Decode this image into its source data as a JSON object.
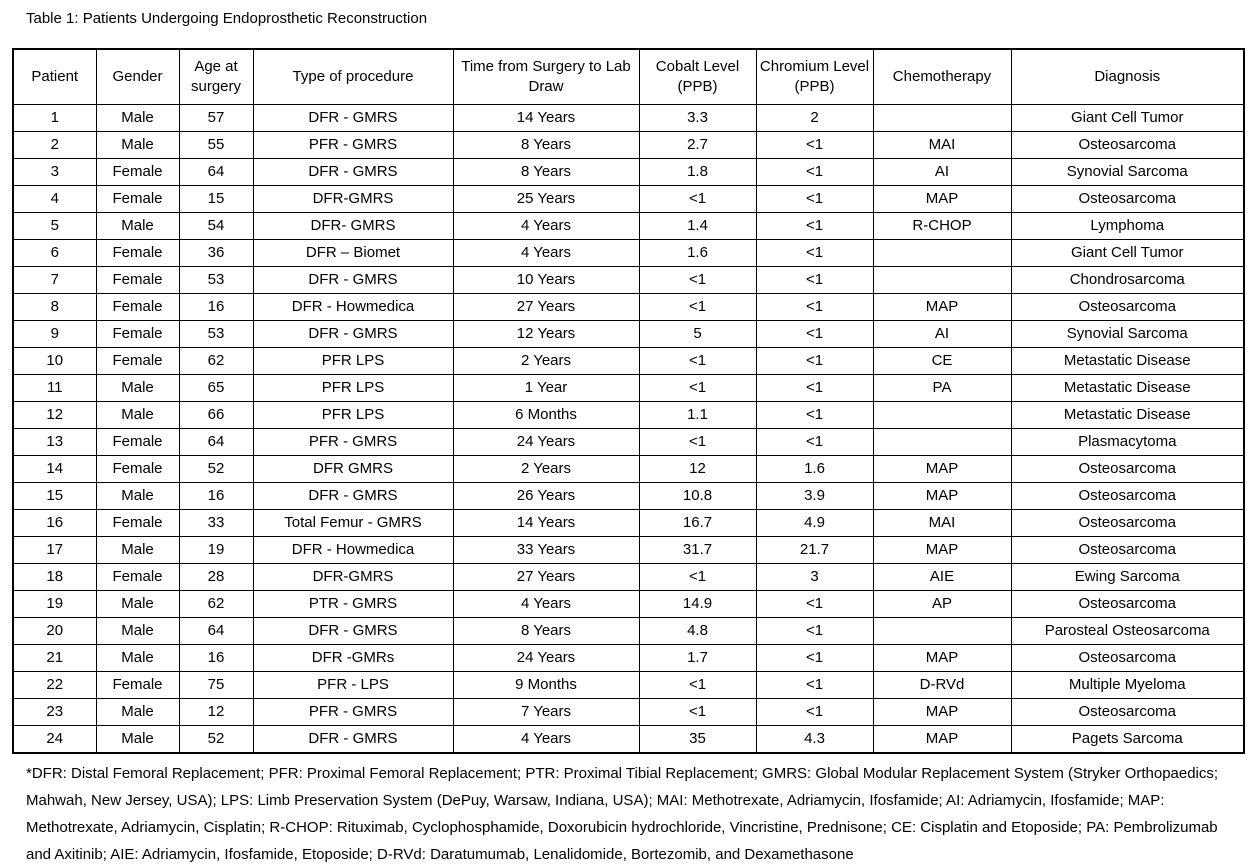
{
  "document": {
    "title": "Table 1: Patients Undergoing Endoprosthetic Reconstruction",
    "footnote": "*DFR: Distal Femoral Replacement; PFR: Proximal Femoral Replacement; PTR: Proximal Tibial Replacement; GMRS: Global Modular Replacement System (Stryker Orthopaedics; Mahwah, New Jersey, USA); LPS: Limb Preservation System (DePuy, Warsaw, Indiana, USA); MAI: Methotrexate, Adriamycin, Ifosfamide; AI: Adriamycin, Ifosfamide; MAP: Methotrexate, Adriamycin, Cisplatin; R-CHOP: Rituximab, Cyclophosphamide, Doxorubicin hydrochloride, Vincristine, Prednisone; CE: Cisplatin and Etoposide; PA: Pembrolizumab and Axitinib; AIE: Adriamycin, Ifosfamide, Etoposide; D-RVd: Daratumumab, Lenalidomide, Bortezomib, and Dexamethasone"
  },
  "table": {
    "column_keys": [
      "patient",
      "gender",
      "age",
      "procedure",
      "time",
      "cobalt",
      "chromium",
      "chemo",
      "diagnosis"
    ],
    "columns": [
      "Patient",
      "Gender",
      "Age at surgery",
      "Type of procedure",
      "Time from Surgery to Lab Draw",
      "Cobalt Level (PPB)",
      "Chromium Level (PPB)",
      "Chemotherapy",
      "Diagnosis"
    ],
    "rows": [
      [
        "1",
        "Male",
        "57",
        "DFR - GMRS",
        "14 Years",
        "3.3",
        "2",
        "",
        "Giant Cell Tumor"
      ],
      [
        "2",
        "Male",
        "55",
        "PFR - GMRS",
        "8 Years",
        "2.7",
        "<1",
        "MAI",
        "Osteosarcoma"
      ],
      [
        "3",
        "Female",
        "64",
        "DFR - GMRS",
        "8 Years",
        "1.8",
        "<1",
        "AI",
        "Synovial Sarcoma"
      ],
      [
        "4",
        "Female",
        "15",
        "DFR-GMRS",
        "25 Years",
        "<1",
        "<1",
        "MAP",
        "Osteosarcoma"
      ],
      [
        "5",
        "Male",
        "54",
        "DFR- GMRS",
        "4 Years",
        "1.4",
        "<1",
        "R-CHOP",
        "Lymphoma"
      ],
      [
        "6",
        "Female",
        "36",
        "DFR – Biomet",
        "4 Years",
        "1.6",
        "<1",
        "",
        "Giant Cell Tumor"
      ],
      [
        "7",
        "Female",
        "53",
        "DFR - GMRS",
        "10 Years",
        "<1",
        "<1",
        "",
        "Chondrosarcoma"
      ],
      [
        "8",
        "Female",
        "16",
        "DFR - Howmedica",
        "27 Years",
        "<1",
        "<1",
        "MAP",
        "Osteosarcoma"
      ],
      [
        "9",
        "Female",
        "53",
        "DFR - GMRS",
        "12 Years",
        "5",
        "<1",
        "AI",
        "Synovial Sarcoma"
      ],
      [
        "10",
        "Female",
        "62",
        "PFR LPS",
        "2 Years",
        "<1",
        "<1",
        "CE",
        "Metastatic Disease"
      ],
      [
        "11",
        "Male",
        "65",
        "PFR LPS",
        "1 Year",
        "<1",
        "<1",
        "PA",
        "Metastatic Disease"
      ],
      [
        "12",
        "Male",
        "66",
        "PFR LPS",
        "6 Months",
        "1.1",
        "<1",
        "",
        "Metastatic Disease"
      ],
      [
        "13",
        "Female",
        "64",
        "PFR - GMRS",
        "24 Years",
        "<1",
        "<1",
        "",
        "Plasmacytoma"
      ],
      [
        "14",
        "Female",
        "52",
        "DFR GMRS",
        "2 Years",
        "12",
        "1.6",
        "MAP",
        "Osteosarcoma"
      ],
      [
        "15",
        "Male",
        "16",
        "DFR - GMRS",
        "26 Years",
        "10.8",
        "3.9",
        "MAP",
        "Osteosarcoma"
      ],
      [
        "16",
        "Female",
        "33",
        "Total Femur - GMRS",
        "14 Years",
        "16.7",
        "4.9",
        "MAI",
        "Osteosarcoma"
      ],
      [
        "17",
        "Male",
        "19",
        "DFR - Howmedica",
        "33 Years",
        "31.7",
        "21.7",
        "MAP",
        "Osteosarcoma"
      ],
      [
        "18",
        "Female",
        "28",
        "DFR-GMRS",
        "27 Years",
        "<1",
        "3",
        "AIE",
        "Ewing Sarcoma"
      ],
      [
        "19",
        "Male",
        "62",
        "PTR - GMRS",
        "4 Years",
        "14.9",
        "<1",
        "AP",
        "Osteosarcoma"
      ],
      [
        "20",
        "Male",
        "64",
        "DFR - GMRS",
        "8 Years",
        "4.8",
        "<1",
        "",
        "Parosteal Osteosarcoma"
      ],
      [
        "21",
        "Male",
        "16",
        "DFR -GMRs",
        "24 Years",
        "1.7",
        "<1",
        "MAP",
        "Osteosarcoma"
      ],
      [
        "22",
        "Female",
        "75",
        "PFR - LPS",
        "9 Months",
        "<1",
        "<1",
        "D-RVd",
        "Multiple Myeloma"
      ],
      [
        "23",
        "Male",
        "12",
        "PFR - GMRS",
        "7 Years",
        "<1",
        "<1",
        "MAP",
        "Osteosarcoma"
      ],
      [
        "24",
        "Male",
        "52",
        "DFR - GMRS",
        "4 Years",
        "35",
        "4.3",
        "MAP",
        "Pagets Sarcoma"
      ]
    ]
  }
}
